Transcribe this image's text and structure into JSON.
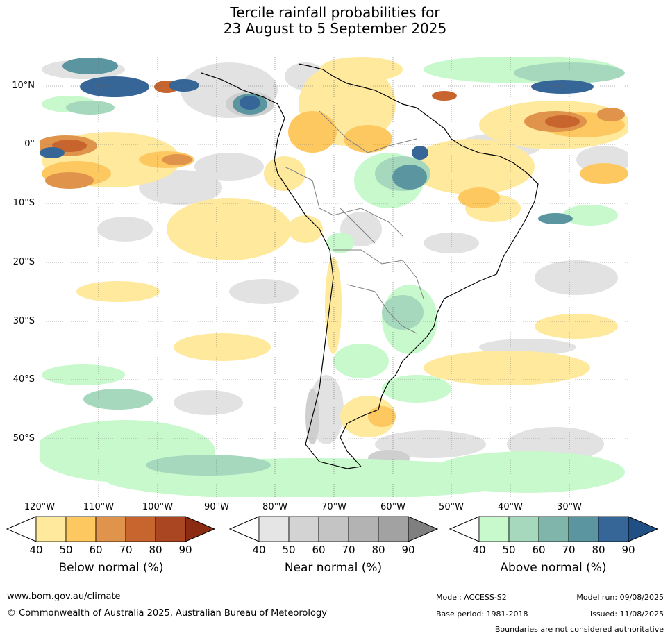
{
  "title": {
    "line1": "Tercile rainfall probabilities for",
    "line2": "23 August to 5 September 2025"
  },
  "latitudes": [
    "10°N",
    "0°",
    "10°S",
    "20°S",
    "30°S",
    "40°S",
    "50°S"
  ],
  "longitudes": [
    "120°W",
    "110°W",
    "100°W",
    "90°W",
    "80°W",
    "70°W",
    "60°W",
    "50°W",
    "40°W",
    "30°W"
  ],
  "colorbars": [
    {
      "name": "Below normal (%)",
      "ticks": [
        "40",
        "50",
        "60",
        "70",
        "80",
        "90"
      ],
      "colors": [
        "#ffffff",
        "#fee99d",
        "#fec861",
        "#e0934a",
        "#c8652e",
        "#ab4623",
        "#8b2b12"
      ]
    },
    {
      "name": "Near normal (%)",
      "ticks": [
        "40",
        "50",
        "60",
        "70",
        "80",
        "90"
      ],
      "colors": [
        "#ffffff",
        "#e5e5e5",
        "#d3d3d3",
        "#c4c4c4",
        "#b3b3b3",
        "#a2a2a2",
        "#7f7f7f"
      ]
    },
    {
      "name": "Above normal (%)",
      "ticks": [
        "40",
        "50",
        "60",
        "70",
        "80",
        "90"
      ],
      "colors": [
        "#ffffff",
        "#c7f9cc",
        "#a5d8bd",
        "#7fb5aa",
        "#5b96a0",
        "#356697",
        "#1f4f85"
      ]
    }
  ],
  "footer": {
    "url": "www.bom.gov.au/climate",
    "copyright": "© Commonwealth of Australia 2025, Australian Bureau of Meteorology",
    "model": "Model: ACCESS-S2",
    "model_run": "Model run: 09/08/2025",
    "base_period": "Base period: 1981-2018",
    "issued": "Issued: 11/08/2025",
    "disclaimer": "Boundaries are not considered authoritative"
  }
}
